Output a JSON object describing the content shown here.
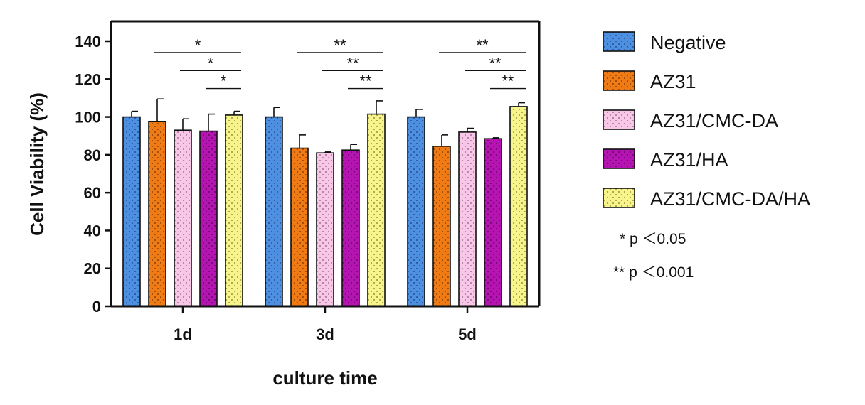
{
  "chart_data": {
    "type": "bar",
    "title": "",
    "xlabel": "culture time",
    "ylabel": "Cell Viability (%)",
    "ylim": [
      0,
      140
    ],
    "yticks": [
      0,
      20,
      40,
      60,
      80,
      100,
      120,
      140
    ],
    "categories": [
      "1d",
      "3d",
      "5d"
    ],
    "series": [
      {
        "name": "Negative",
        "color": "#4d8fe0",
        "dot": "#1c3f7a",
        "values": [
          100,
          100,
          100
        ],
        "errors": [
          3,
          5,
          4
        ]
      },
      {
        "name": "AZ31",
        "color": "#f07b14",
        "dot": "#6b3306",
        "values": [
          97.5,
          83.5,
          84.5
        ],
        "errors": [
          12,
          7,
          6
        ]
      },
      {
        "name": "AZ31/CMC-DA",
        "color": "#f8c6e6",
        "dot": "#8a5a7a",
        "values": [
          93,
          81,
          92
        ],
        "errors": [
          6,
          0.5,
          2
        ]
      },
      {
        "name": "AZ31/HA",
        "color": "#b514b2",
        "dot": "#4a0648",
        "values": [
          92.5,
          82.5,
          88.5
        ],
        "errors": [
          9,
          3,
          0.5
        ]
      },
      {
        "name": "AZ31/CMC-DA/HA",
        "color": "#f7f48c",
        "dot": "#7a7520",
        "values": [
          101,
          101.5,
          105.5
        ],
        "errors": [
          2,
          7,
          2
        ]
      }
    ],
    "significance": [
      {
        "category_index": 0,
        "from_series": 1,
        "to_series": 4,
        "y": 134,
        "label": "*"
      },
      {
        "category_index": 0,
        "from_series": 2,
        "to_series": 4,
        "y": 124.5,
        "label": "*"
      },
      {
        "category_index": 0,
        "from_series": 3,
        "to_series": 4,
        "y": 115,
        "label": "*"
      },
      {
        "category_index": 1,
        "from_series": 1,
        "to_series": 4,
        "y": 134,
        "label": "**"
      },
      {
        "category_index": 1,
        "from_series": 2,
        "to_series": 4,
        "y": 124.5,
        "label": "**"
      },
      {
        "category_index": 1,
        "from_series": 3,
        "to_series": 4,
        "y": 115,
        "label": "**"
      },
      {
        "category_index": 2,
        "from_series": 1,
        "to_series": 4,
        "y": 134,
        "label": "**"
      },
      {
        "category_index": 2,
        "from_series": 2,
        "to_series": 4,
        "y": 124.5,
        "label": "**"
      },
      {
        "category_index": 2,
        "from_series": 3,
        "to_series": 4,
        "y": 115,
        "label": "**"
      }
    ],
    "legend_position": "right",
    "notes": [
      "* p ＜0.05",
      "** p ＜0.001"
    ]
  }
}
